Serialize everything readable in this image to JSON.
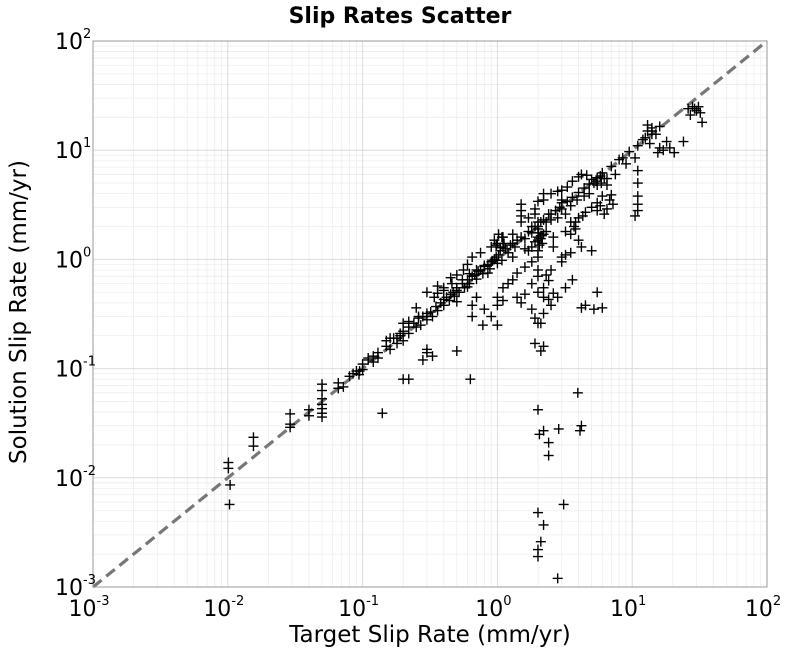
{
  "chart_data": {
    "type": "scatter",
    "title": "Slip Rates Scatter",
    "xlabel": "Target Slip Rate (mm/yr)",
    "ylabel": "Solution Slip Rate (mm/yr)",
    "xscale": "log",
    "yscale": "log",
    "xlim": [
      0.001,
      100
    ],
    "ylim": [
      0.001,
      100
    ],
    "grid": true,
    "marker": "+",
    "marker_color": "#000000",
    "reference_line": {
      "style": "dashed",
      "color": "#777777",
      "from": [
        0.001,
        0.001
      ],
      "to": [
        100,
        100
      ]
    },
    "xticks": [
      {
        "base": "10",
        "exp": "-3"
      },
      {
        "base": "10",
        "exp": "-2"
      },
      {
        "base": "10",
        "exp": "-1"
      },
      {
        "base": "10",
        "exp": "0"
      },
      {
        "base": "10",
        "exp": "1"
      },
      {
        "base": "10",
        "exp": "2"
      }
    ],
    "yticks": [
      {
        "base": "10",
        "exp": "-3"
      },
      {
        "base": "10",
        "exp": "-2"
      },
      {
        "base": "10",
        "exp": "-1"
      },
      {
        "base": "10",
        "exp": "0"
      },
      {
        "base": "10",
        "exp": "1"
      },
      {
        "base": "10",
        "exp": "2"
      }
    ],
    "points": [
      [
        0.0101,
        0.0138
      ],
      [
        0.0101,
        0.0122
      ],
      [
        0.0104,
        0.0086
      ],
      [
        0.0103,
        0.0057
      ],
      [
        0.0155,
        0.0235
      ],
      [
        0.0155,
        0.0195
      ],
      [
        0.029,
        0.0385
      ],
      [
        0.029,
        0.031
      ],
      [
        0.029,
        0.029
      ],
      [
        0.04,
        0.042
      ],
      [
        0.04,
        0.037
      ],
      [
        0.05,
        0.072
      ],
      [
        0.05,
        0.063
      ],
      [
        0.05,
        0.053
      ],
      [
        0.05,
        0.047
      ],
      [
        0.05,
        0.043
      ],
      [
        0.05,
        0.039
      ],
      [
        0.05,
        0.036
      ],
      [
        0.066,
        0.074
      ],
      [
        0.066,
        0.066
      ],
      [
        0.072,
        0.068
      ],
      [
        0.09,
        0.095
      ],
      [
        0.094,
        0.088
      ],
      [
        0.1,
        0.098
      ],
      [
        0.11,
        0.125
      ],
      [
        0.12,
        0.115
      ],
      [
        0.13,
        0.14
      ],
      [
        0.13,
        0.125
      ],
      [
        0.15,
        0.16
      ],
      [
        0.16,
        0.15
      ],
      [
        0.16,
        0.19
      ],
      [
        0.18,
        0.19
      ],
      [
        0.19,
        0.21
      ],
      [
        0.2,
        0.18
      ],
      [
        0.2,
        0.22
      ],
      [
        0.22,
        0.24
      ],
      [
        0.22,
        0.21
      ],
      [
        0.24,
        0.26
      ],
      [
        0.25,
        0.24
      ],
      [
        0.26,
        0.29
      ],
      [
        0.27,
        0.25
      ],
      [
        0.28,
        0.3
      ],
      [
        0.3,
        0.32
      ],
      [
        0.3,
        0.28
      ],
      [
        0.32,
        0.33
      ],
      [
        0.33,
        0.3
      ],
      [
        0.35,
        0.37
      ],
      [
        0.36,
        0.34
      ],
      [
        0.38,
        0.4
      ],
      [
        0.4,
        0.38
      ],
      [
        0.4,
        0.43
      ],
      [
        0.42,
        0.45
      ],
      [
        0.44,
        0.42
      ],
      [
        0.45,
        0.48
      ],
      [
        0.47,
        0.5
      ],
      [
        0.48,
        0.46
      ],
      [
        0.5,
        0.52
      ],
      [
        0.5,
        0.55
      ],
      [
        0.52,
        0.5
      ],
      [
        0.55,
        0.6
      ],
      [
        0.57,
        0.55
      ],
      [
        0.6,
        0.65
      ],
      [
        0.62,
        0.6
      ],
      [
        0.65,
        0.7
      ],
      [
        0.68,
        0.72
      ],
      [
        0.7,
        0.66
      ],
      [
        0.72,
        0.78
      ],
      [
        0.75,
        0.8
      ],
      [
        0.78,
        0.74
      ],
      [
        0.8,
        0.86
      ],
      [
        0.85,
        0.9
      ],
      [
        0.88,
        0.82
      ],
      [
        0.9,
        0.95
      ],
      [
        0.95,
        1.0
      ],
      [
        0.98,
        1.05
      ],
      [
        1.0,
        0.92
      ],
      [
        1.02,
        1.1
      ],
      [
        1.05,
        1.2
      ],
      [
        1.08,
        0.98
      ],
      [
        1.1,
        1.3
      ],
      [
        1.15,
        1.25
      ],
      [
        1.2,
        1.15
      ],
      [
        1.25,
        1.35
      ],
      [
        1.3,
        1.4
      ],
      [
        1.35,
        1.3
      ],
      [
        1.4,
        1.5
      ],
      [
        1.5,
        1.6
      ],
      [
        1.6,
        1.55
      ],
      [
        1.7,
        1.8
      ],
      [
        1.8,
        1.75
      ],
      [
        1.9,
        2.0
      ],
      [
        2.0,
        1.9
      ],
      [
        2.1,
        2.2
      ],
      [
        2.2,
        2.3
      ],
      [
        2.3,
        2.2
      ],
      [
        2.5,
        2.6
      ],
      [
        2.7,
        2.8
      ],
      [
        2.9,
        3.0
      ],
      [
        3.0,
        2.9
      ],
      [
        3.3,
        3.4
      ],
      [
        3.6,
        3.7
      ],
      [
        4.0,
        4.1
      ],
      [
        4.4,
        4.5
      ],
      [
        4.8,
        4.9
      ],
      [
        5.2,
        5.0
      ],
      [
        5.5,
        5.6
      ],
      [
        6.0,
        6.2
      ],
      [
        7.0,
        7.1
      ],
      [
        8.0,
        8.2
      ],
      [
        9.5,
        9.7
      ],
      [
        11,
        11
      ],
      [
        12,
        12.5
      ],
      [
        14,
        14
      ],
      [
        16,
        16.5
      ],
      [
        26,
        24
      ],
      [
        28,
        25
      ],
      [
        30,
        23
      ],
      [
        32,
        22
      ],
      [
        29,
        24
      ],
      [
        31,
        25
      ],
      [
        33,
        18
      ],
      [
        27,
        21
      ],
      [
        0.34,
        0.45
      ],
      [
        0.3,
        0.5
      ],
      [
        0.36,
        0.57
      ],
      [
        0.4,
        0.55
      ],
      [
        0.45,
        0.68
      ],
      [
        0.5,
        0.72
      ],
      [
        0.56,
        0.8
      ],
      [
        0.6,
        0.9
      ],
      [
        0.65,
        1.05
      ],
      [
        0.75,
        1.15
      ],
      [
        0.9,
        1.3
      ],
      [
        1.0,
        1.4
      ],
      [
        1.1,
        1.6
      ],
      [
        1.3,
        1.7
      ],
      [
        1.5,
        2.2
      ],
      [
        1.7,
        2.4
      ],
      [
        1.9,
        2.6
      ],
      [
        2.2,
        3.5
      ],
      [
        2.5,
        4.0
      ],
      [
        2.8,
        4.2
      ],
      [
        3.0,
        3.3
      ],
      [
        3.2,
        2.6
      ],
      [
        0.6,
        0.56
      ],
      [
        0.85,
        0.75
      ],
      [
        1.3,
        1.05
      ],
      [
        1.6,
        1.25
      ],
      [
        2.6,
        1.6
      ],
      [
        2.0,
        1.2
      ],
      [
        2.6,
        1.3
      ],
      [
        3.2,
        1.1
      ],
      [
        2.5,
        2.3
      ],
      [
        3.8,
        2.2
      ],
      [
        4.5,
        2.7
      ],
      [
        5.5,
        3.3
      ],
      [
        6.0,
        3.8
      ],
      [
        6.5,
        4.8
      ],
      [
        2.0,
        1.5
      ],
      [
        2.2,
        1.7
      ],
      [
        1.8,
        1.3
      ],
      [
        1.9,
        1.45
      ],
      [
        2.1,
        1.55
      ],
      [
        2.3,
        1.8
      ],
      [
        1.7,
        1.2
      ],
      [
        2.05,
        1.35
      ],
      [
        2.0,
        2.0
      ],
      [
        2.02,
        1.75
      ],
      [
        2.1,
        1.65
      ],
      [
        2.15,
        1.4
      ],
      [
        2.0,
        1.6
      ],
      [
        10.5,
        8.5
      ],
      [
        11,
        6.5
      ],
      [
        11,
        5
      ],
      [
        11,
        3.8
      ],
      [
        11,
        2.8
      ],
      [
        10.5,
        2.5
      ],
      [
        11,
        3.2
      ],
      [
        6.5,
        2.9
      ],
      [
        6.2,
        2.6
      ],
      [
        5.8,
        3.1
      ],
      [
        6.8,
        3.5
      ],
      [
        7.0,
        3.9
      ],
      [
        7.2,
        3.2
      ],
      [
        5.5,
        2.8
      ],
      [
        5.0,
        3.0
      ],
      [
        13,
        17
      ],
      [
        14,
        15
      ],
      [
        15,
        14
      ],
      [
        16,
        10.5
      ],
      [
        15.5,
        9.5
      ],
      [
        13.5,
        11.5
      ],
      [
        12.5,
        13
      ],
      [
        17,
        10
      ],
      [
        18,
        12
      ],
      [
        19,
        10.5
      ],
      [
        20.5,
        9.5
      ],
      [
        24,
        12
      ],
      [
        14,
        16
      ],
      [
        13,
        15
      ],
      [
        8.5,
        8.5
      ],
      [
        9,
        7.5
      ],
      [
        7.5,
        6
      ],
      [
        6.5,
        5.5
      ],
      [
        5.5,
        4.8
      ],
      [
        3.5,
        2.2
      ],
      [
        4.0,
        1.5
      ],
      [
        3.5,
        1.15
      ],
      [
        4.2,
        1.3
      ],
      [
        5.0,
        1.2
      ],
      [
        3.0,
        1.05
      ],
      [
        3.8,
        1.9
      ],
      [
        2.8,
        2.4
      ],
      [
        2.4,
        2.6
      ],
      [
        1.0,
        0.45
      ],
      [
        1.1,
        0.55
      ],
      [
        1.2,
        0.6
      ],
      [
        1.3,
        0.65
      ],
      [
        1.4,
        0.75
      ],
      [
        1.6,
        0.85
      ],
      [
        1.8,
        0.95
      ],
      [
        2.0,
        1.05
      ],
      [
        0.7,
        0.45
      ],
      [
        0.8,
        0.35
      ],
      [
        0.9,
        0.3
      ],
      [
        1.0,
        0.25
      ],
      [
        1.0,
        0.38
      ],
      [
        1.1,
        0.42
      ],
      [
        0.65,
        0.38
      ],
      [
        0.5,
        0.41
      ],
      [
        1.4,
        0.45
      ],
      [
        1.5,
        0.4
      ],
      [
        1.8,
        0.35
      ],
      [
        1.6,
        0.48
      ],
      [
        2.0,
        0.5
      ],
      [
        2.2,
        0.45
      ],
      [
        2.4,
        0.43
      ],
      [
        2.6,
        0.49
      ],
      [
        1.8,
        0.6
      ],
      [
        2.0,
        0.7
      ],
      [
        2.3,
        0.72
      ],
      [
        2.0,
        0.8
      ],
      [
        2.2,
        0.55
      ],
      [
        2.4,
        0.64
      ],
      [
        2.5,
        0.8
      ],
      [
        3.0,
        0.95
      ],
      [
        2.1,
        0.26
      ],
      [
        1.9,
        0.29
      ],
      [
        2.2,
        0.32
      ],
      [
        2.5,
        0.38
      ],
      [
        2.8,
        0.45
      ],
      [
        3.2,
        0.55
      ],
      [
        3.6,
        0.65
      ],
      [
        4.5,
        0.38
      ],
      [
        4.2,
        0.36
      ],
      [
        5.5,
        0.5
      ],
      [
        5.2,
        0.35
      ],
      [
        6.0,
        0.36
      ],
      [
        2.0,
        0.26
      ],
      [
        2.2,
        0.16
      ],
      [
        1.9,
        0.17
      ],
      [
        2.1,
        0.145
      ],
      [
        0.3,
        0.15
      ],
      [
        0.28,
        0.12
      ],
      [
        0.3,
        0.14
      ],
      [
        0.5,
        0.145
      ],
      [
        0.33,
        0.13
      ],
      [
        0.65,
        0.3
      ],
      [
        0.78,
        0.25
      ],
      [
        0.2,
        0.08
      ],
      [
        0.22,
        0.08
      ],
      [
        0.63,
        0.08
      ],
      [
        0.14,
        0.039
      ],
      [
        2.0,
        0.042
      ],
      [
        2.05,
        0.025
      ],
      [
        2.2,
        0.027
      ],
      [
        2.4,
        0.021
      ],
      [
        2.4,
        0.016
      ],
      [
        2.85,
        0.028
      ],
      [
        4.1,
        0.027
      ],
      [
        4.2,
        0.03
      ],
      [
        3.95,
        0.06
      ],
      [
        2.0,
        0.0048
      ],
      [
        2.2,
        0.0037
      ],
      [
        2.1,
        0.0026
      ],
      [
        2.0,
        0.0022
      ],
      [
        2.0,
        0.0019
      ],
      [
        3.1,
        0.0057
      ],
      [
        2.8,
        0.0012
      ],
      [
        1.5,
        2.8
      ],
      [
        1.5,
        3.2
      ],
      [
        1.5,
        2.5
      ],
      [
        1.9,
        2.9
      ],
      [
        2.0,
        3.4
      ],
      [
        2.2,
        4.0
      ],
      [
        2.0,
        2.2
      ],
      [
        1.8,
        2.0
      ],
      [
        3.0,
        4.3
      ],
      [
        3.3,
        4.6
      ],
      [
        3.6,
        5.2
      ],
      [
        4.0,
        5.7
      ],
      [
        4.2,
        6.0
      ],
      [
        4.6,
        5.9
      ],
      [
        5.0,
        5.4
      ],
      [
        5.4,
        5.2
      ],
      [
        5.8,
        5.8
      ],
      [
        6.2,
        5.5
      ],
      [
        5.9,
        5.0
      ],
      [
        3.9,
        3.5
      ],
      [
        4.4,
        3.8
      ],
      [
        4.8,
        4.0
      ],
      [
        4.0,
        2.4
      ],
      [
        4.3,
        2.5
      ],
      [
        3.7,
        2.0
      ],
      [
        3.5,
        1.7
      ],
      [
        3.2,
        1.8
      ],
      [
        3.5,
        3.1
      ],
      [
        3.0,
        3.5
      ],
      [
        0.36,
        0.49
      ],
      [
        0.4,
        0.52
      ],
      [
        0.46,
        0.6
      ],
      [
        0.55,
        0.65
      ],
      [
        0.62,
        0.74
      ],
      [
        0.7,
        0.8
      ],
      [
        0.8,
        0.88
      ],
      [
        0.92,
        0.97
      ],
      [
        0.95,
        1.5
      ],
      [
        1.02,
        1.7
      ],
      [
        1.08,
        1.6
      ],
      [
        1.12,
        1.4
      ],
      [
        0.98,
        1.35
      ],
      [
        1.05,
        1.28
      ],
      [
        0.25,
        0.36
      ],
      [
        0.26,
        0.3
      ],
      [
        0.22,
        0.27
      ],
      [
        0.2,
        0.26
      ],
      [
        0.19,
        0.2
      ],
      [
        0.18,
        0.17
      ],
      [
        0.17,
        0.19
      ],
      [
        0.15,
        0.18
      ],
      [
        0.12,
        0.13
      ],
      [
        0.11,
        0.12
      ],
      [
        0.1,
        0.11
      ],
      [
        0.095,
        0.095
      ],
      [
        0.085,
        0.09
      ],
      [
        0.08,
        0.085
      ]
    ]
  }
}
